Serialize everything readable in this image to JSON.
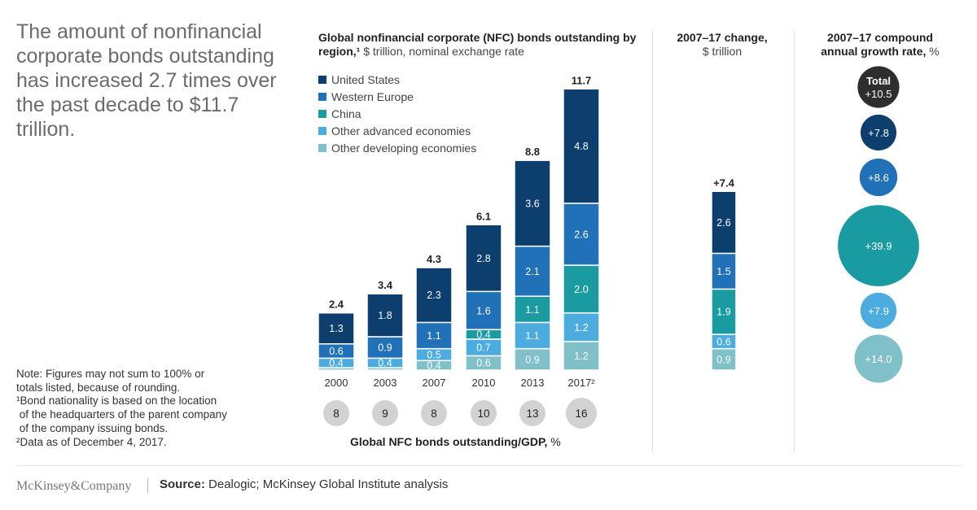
{
  "headline": "The amount of nonfinancial corporate bonds outstanding has increased 2.7 times over the past decade to $11.7 trillion.",
  "note_lines": [
    "Note: Figures may not sum to 100% or",
    "totals listed, because of rounding.",
    "¹Bond nationality is based on the location",
    " of the headquarters of the parent company",
    " of the company issuing bonds.",
    "²Data as of December 4, 2017."
  ],
  "chart_title": {
    "bold": "Global nonfinancial corporate (NFC) bonds outstanding by region,¹",
    "light": " $ trillion, nominal exchange rate"
  },
  "colors": {
    "United States": "#0d3f6e",
    "Western Europe": "#2171b8",
    "China": "#1a9ba1",
    "Other advanced economies": "#4cace0",
    "Other developing economies": "#7fc0c9",
    "total_circle": "#2e2e2e",
    "gdp_circle": "#d2d2d2"
  },
  "chart_data": [
    {
      "type": "bar",
      "stacked": true,
      "title": "Global nonfinancial corporate (NFC) bonds outstanding by region,¹ $ trillion, nominal exchange rate",
      "categories": [
        "2000",
        "2003",
        "2007",
        "2010",
        "2013",
        "2017²"
      ],
      "series": [
        {
          "name": "Other developing economies",
          "values": [
            0.1,
            0.1,
            0.4,
            0.6,
            0.9,
            1.2
          ],
          "labels": [
            "",
            "",
            "0.4",
            "0.6",
            "0.9",
            "1.2"
          ]
        },
        {
          "name": "Other advanced economies",
          "values": [
            0.4,
            0.4,
            0.5,
            0.7,
            1.1,
            1.2
          ],
          "labels": [
            "0.4",
            "0.4",
            "0.5",
            "0.7",
            "1.1",
            "1.2"
          ]
        },
        {
          "name": "China",
          "values": [
            0.0,
            0.0,
            0.0,
            0.4,
            1.1,
            2.0
          ],
          "labels": [
            "",
            "",
            "",
            "0.4",
            "1.1",
            "2.0"
          ]
        },
        {
          "name": "Western Europe",
          "values": [
            0.6,
            0.9,
            1.1,
            1.6,
            2.1,
            2.6
          ],
          "labels": [
            "0.6",
            "0.9",
            "1.1",
            "1.6",
            "2.1",
            "2.6"
          ]
        },
        {
          "name": "United States",
          "values": [
            1.3,
            1.8,
            2.3,
            2.8,
            3.6,
            4.8
          ],
          "labels": [
            "1.3",
            "1.8",
            "2.3",
            "2.8",
            "3.6",
            "4.8"
          ]
        }
      ],
      "totals": [
        "2.4",
        "3.4",
        "4.3",
        "6.1",
        "8.8",
        "11.7"
      ],
      "totals_values": [
        2.4,
        3.4,
        4.3,
        6.1,
        8.8,
        11.7
      ],
      "legend": [
        "United States",
        "Western Europe",
        "China",
        "Other advanced economies",
        "Other developing economies"
      ],
      "legend_position": "top-left",
      "grid": false
    },
    {
      "type": "bar",
      "stacked": true,
      "title": "2007–17 change, $ trillion",
      "total_label": "+7.4",
      "total_value": 7.4,
      "segments": [
        {
          "name": "Other developing economies",
          "value": 0.9,
          "label": "0.9"
        },
        {
          "name": "Other advanced economies",
          "value": 0.6,
          "label": "0.6"
        },
        {
          "name": "China",
          "value": 1.9,
          "label": "1.9"
        },
        {
          "name": "Western Europe",
          "value": 1.5,
          "label": "1.5"
        },
        {
          "name": "United States",
          "value": 2.6,
          "label": "2.6"
        }
      ]
    },
    {
      "type": "bubble",
      "title": "2007–17 compound annual growth rate, %",
      "items": [
        {
          "name": "Total",
          "value": 10.5,
          "label": "+10.5",
          "top_label": "Total"
        },
        {
          "name": "United States",
          "value": 7.8,
          "label": "+7.8"
        },
        {
          "name": "Western Europe",
          "value": 8.6,
          "label": "+8.6"
        },
        {
          "name": "China",
          "value": 39.9,
          "label": "+39.9"
        },
        {
          "name": "Other advanced economies",
          "value": 7.9,
          "label": "+7.9"
        },
        {
          "name": "Other developing economies",
          "value": 14.0,
          "label": "+14.0"
        }
      ]
    },
    {
      "type": "table",
      "title": "Global NFC bonds outstanding/GDP, %",
      "categories": [
        "2000",
        "2003",
        "2007",
        "2010",
        "2013",
        "2017²"
      ],
      "values": [
        8,
        9,
        8,
        10,
        13,
        16
      ]
    }
  ],
  "change_header": {
    "bold": "2007–17 change,",
    "light": "$ trillion"
  },
  "cagr_header": {
    "bold": "2007–17 compound",
    "bold2": "annual growth rate,",
    "light": " %"
  },
  "gdp_title": {
    "bold": "Global NFC bonds outstanding/GDP,",
    "light": " %"
  },
  "footer": {
    "logo": "McKinsey&Company",
    "source_label": "Source:",
    "source_text": " Dealogic; McKinsey Global Institute analysis"
  }
}
